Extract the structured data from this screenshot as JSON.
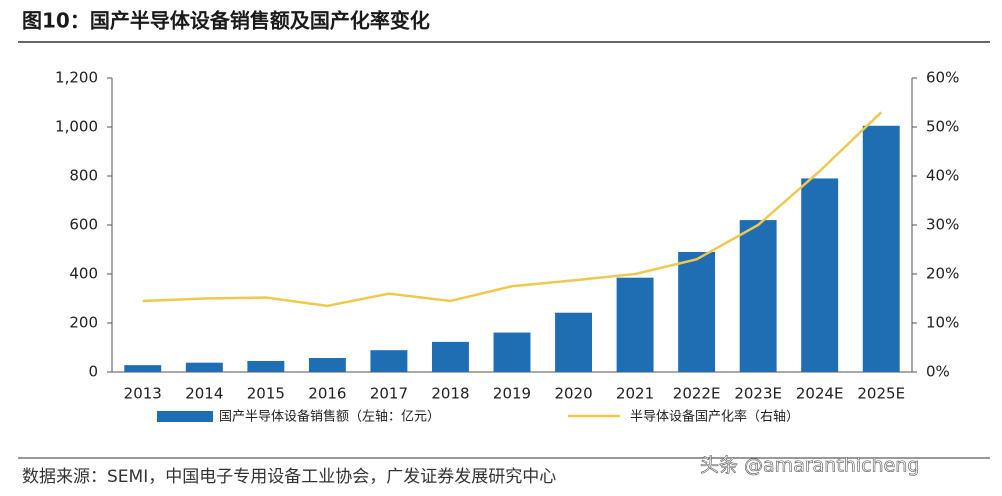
{
  "chart_data": {
    "type": "bar-line",
    "title": "图10：国产半导体设备销售额及国产化率变化",
    "source": "数据来源：SEMI，中国电子专用设备工业协会，广发证券发展研究中心",
    "watermark": "头条 @amaranthicheng",
    "categories": [
      "2013",
      "2014",
      "2015",
      "2016",
      "2017",
      "2018",
      "2019",
      "2020",
      "2021",
      "2022E",
      "2023E",
      "2024E",
      "2025E"
    ],
    "series": [
      {
        "name": "国产半导体设备销售额（左轴：亿元）",
        "color": "#1f6db3",
        "type": "bar",
        "values": [
          28,
          38,
          45,
          57,
          89,
          123,
          161,
          242,
          385,
          490,
          620,
          790,
          1005
        ]
      },
      {
        "name": "半导体设备国产化率（右轴）",
        "color": "#f0c850",
        "type": "line",
        "axis": "y2",
        "values": [
          14.5,
          15,
          15.2,
          13.5,
          16,
          14.5,
          17.5,
          18.7,
          20,
          23,
          30,
          41,
          53
        ]
      }
    ],
    "ylim": [
      0,
      1200
    ],
    "yticks": [
      0,
      200,
      400,
      600,
      800,
      {
        "value": 1000,
        "label": "1,000"
      },
      {
        "value": 1200,
        "label": "1,200"
      }
    ],
    "y2lim": [
      0,
      60
    ],
    "y2ticks": [
      {
        "value": 0,
        "label": "0%"
      },
      {
        "value": 10,
        "label": "10%"
      },
      {
        "value": 20,
        "label": "20%"
      },
      {
        "value": 30,
        "label": "30%"
      },
      {
        "value": 40,
        "label": "40%"
      },
      {
        "value": 50,
        "label": "50%"
      },
      {
        "value": 60,
        "label": "60%"
      }
    ]
  }
}
